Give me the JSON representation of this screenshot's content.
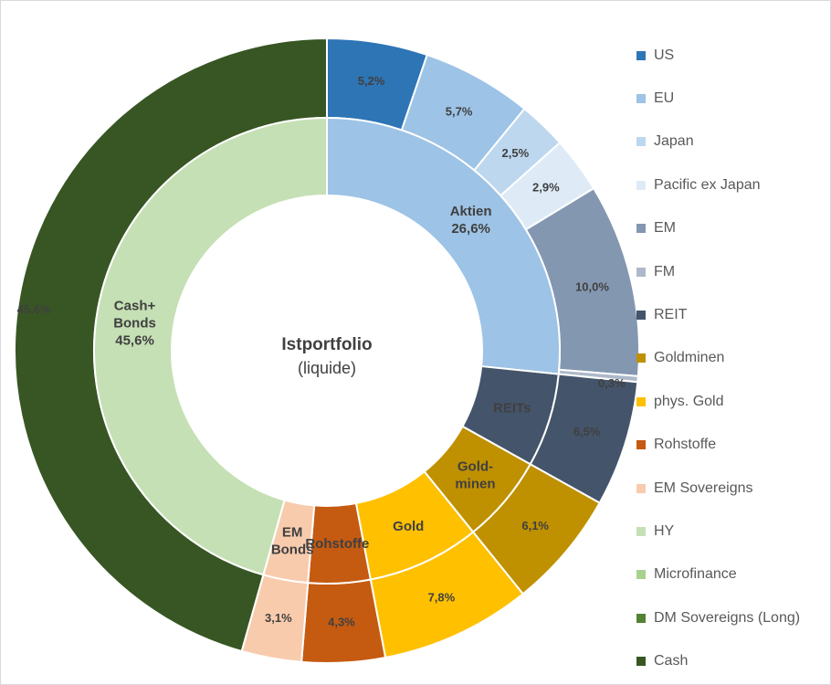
{
  "chart_data": {
    "type": "pie",
    "subtype": "nested-donut",
    "center_text": {
      "title": "Istportfolio",
      "subtitle": "(liquide)"
    },
    "legend_position": "right",
    "legend": [
      {
        "label": "US",
        "color": "#2e75b6"
      },
      {
        "label": "EU",
        "color": "#9dc3e6"
      },
      {
        "label": "Japan",
        "color": "#bdd7ee"
      },
      {
        "label": "Pacific ex Japan",
        "color": "#deebf7"
      },
      {
        "label": "EM",
        "color": "#8497b0"
      },
      {
        "label": "FM",
        "color": "#adb9ca"
      },
      {
        "label": "REIT",
        "color": "#44546a"
      },
      {
        "label": "Goldminen",
        "color": "#bf9000"
      },
      {
        "label": "phys. Gold",
        "color": "#ffc000"
      },
      {
        "label": "Rohstoffe",
        "color": "#c55a11"
      },
      {
        "label": "EM Sovereigns",
        "color": "#f8cbad"
      },
      {
        "label": "HY",
        "color": "#c5e0b4"
      },
      {
        "label": "Microfinance",
        "color": "#a9d18e"
      },
      {
        "label": "DM Sovereigns (Long)",
        "color": "#548235"
      },
      {
        "label": "Cash",
        "color": "#375623"
      }
    ],
    "outer_ring": [
      {
        "category": "US",
        "value": 5.2,
        "label": "5,2%",
        "color": "#2e75b6"
      },
      {
        "category": "EU",
        "value": 5.7,
        "label": "5,7%",
        "color": "#9dc3e6"
      },
      {
        "category": "Japan",
        "value": 2.5,
        "label": "2,5%",
        "color": "#bdd7ee"
      },
      {
        "category": "Pacific ex Japan",
        "value": 2.9,
        "label": "2,9%",
        "color": "#deebf7"
      },
      {
        "category": "EM",
        "value": 10.0,
        "label": "10,0%",
        "color": "#8497b0"
      },
      {
        "category": "FM",
        "value": 0.3,
        "label": "0,3%",
        "color": "#adb9ca"
      },
      {
        "category": "REIT",
        "value": 6.5,
        "label": "6,5%",
        "color": "#44546a"
      },
      {
        "category": "Goldminen",
        "value": 6.1,
        "label": "6,1%",
        "color": "#bf9000"
      },
      {
        "category": "phys. Gold",
        "value": 7.8,
        "label": "7,8%",
        "color": "#ffc000"
      },
      {
        "category": "Rohstoffe",
        "value": 4.3,
        "label": "4,3%",
        "color": "#c55a11"
      },
      {
        "category": "EM Sovereigns",
        "value": 3.1,
        "label": "3,1%",
        "color": "#f8cbad"
      },
      {
        "category": "Cash",
        "value": 45.6,
        "label": "45,6%",
        "color": "#375623"
      }
    ],
    "inner_ring": [
      {
        "group": "Aktien",
        "value": 26.6,
        "label_lines": [
          "Aktien",
          "26,6%"
        ],
        "color": "#9dc3e6"
      },
      {
        "group": "REITs",
        "value": 6.5,
        "label_lines": [
          "REITs"
        ],
        "color": "#44546a",
        "label_color": "#ffffff"
      },
      {
        "group": "Goldminen",
        "value": 6.1,
        "label_lines": [
          "Gold-",
          "minen"
        ],
        "color": "#bf9000"
      },
      {
        "group": "Gold",
        "value": 7.8,
        "label_lines": [
          "Gold"
        ],
        "color": "#ffc000"
      },
      {
        "group": "Rohstoffe",
        "value": 4.3,
        "label_lines": [
          "Rohstoffe"
        ],
        "color": "#c55a11"
      },
      {
        "group": "EM Bonds",
        "value": 3.1,
        "label_lines": [
          "EM",
          "Bonds"
        ],
        "color": "#f8cbad"
      },
      {
        "group": "Cash+ Bonds",
        "value": 45.6,
        "label_lines": [
          "Cash+",
          "Bonds",
          "45,6%"
        ],
        "color": "#c5e0b4"
      }
    ]
  }
}
